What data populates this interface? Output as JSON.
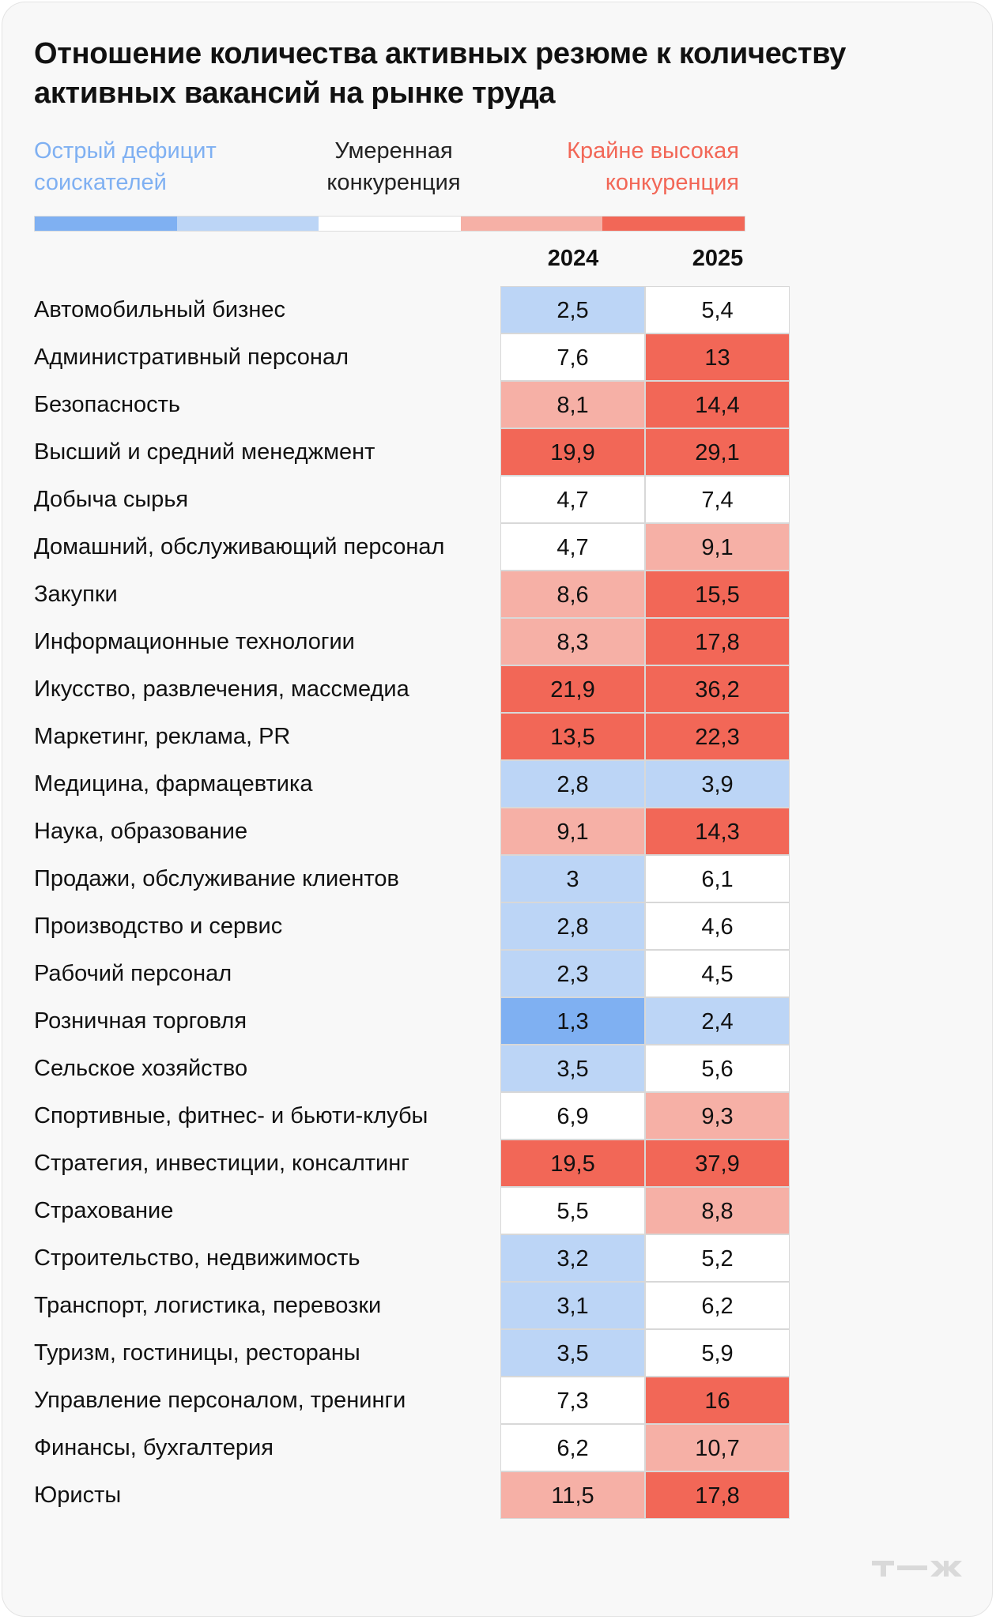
{
  "title": "Отношение количества активных резюме к количеству активных вакансий на рынке труда",
  "legend": {
    "left": "Острый дефицит соискателей",
    "middle": "Умеренная конкуренция",
    "right": "Крайне высокая конкуренция",
    "colors": [
      "#7fb0f2",
      "#bcd5f6",
      "#ffffff",
      "#f6b0a6",
      "#f26757"
    ]
  },
  "logo_text": "Т—Ж",
  "chart_data": {
    "type": "heatmap",
    "title": "Отношение количества активных резюме к количеству активных вакансий на рынке труда",
    "columns": [
      "2024",
      "2025"
    ],
    "rows": [
      {
        "label": "Автомобильный бизнес",
        "values": [
          "2,5",
          "5,4"
        ]
      },
      {
        "label": "Административный персонал",
        "values": [
          "7,6",
          "13"
        ]
      },
      {
        "label": "Безопасность",
        "values": [
          "8,1",
          "14,4"
        ]
      },
      {
        "label": "Высший и средний менеджмент",
        "values": [
          "19,9",
          "29,1"
        ]
      },
      {
        "label": "Добыча сырья",
        "values": [
          "4,7",
          "7,4"
        ]
      },
      {
        "label": "Домашний, обслуживающий персонал",
        "values": [
          "4,7",
          "9,1"
        ]
      },
      {
        "label": "Закупки",
        "values": [
          "8,6",
          "15,5"
        ]
      },
      {
        "label": "Информационные технологии",
        "values": [
          "8,3",
          "17,8"
        ]
      },
      {
        "label": "Икусство, развлечения, массмедиа",
        "values": [
          "21,9",
          "36,2"
        ]
      },
      {
        "label": "Маркетинг, реклама, PR",
        "values": [
          "13,5",
          "22,3"
        ]
      },
      {
        "label": "Медицина, фармацевтика",
        "values": [
          "2,8",
          "3,9"
        ]
      },
      {
        "label": "Наука, образование",
        "values": [
          "9,1",
          "14,3"
        ]
      },
      {
        "label": "Продажи, обслуживание клиентов",
        "values": [
          "3",
          "6,1"
        ]
      },
      {
        "label": "Производство и сервис",
        "values": [
          "2,8",
          "4,6"
        ]
      },
      {
        "label": "Рабочий персонал",
        "values": [
          "2,3",
          "4,5"
        ]
      },
      {
        "label": "Розничная торговля",
        "values": [
          "1,3",
          "2,4"
        ]
      },
      {
        "label": "Сельское хозяйство",
        "values": [
          "3,5",
          "5,6"
        ]
      },
      {
        "label": "Спортивные, фитнес- и бьюти-клубы",
        "values": [
          "6,9",
          "9,3"
        ]
      },
      {
        "label": "Стратегия, инвестиции, консалтинг",
        "values": [
          "19,5",
          "37,9"
        ]
      },
      {
        "label": "Страхование",
        "values": [
          "5,5",
          "8,8"
        ]
      },
      {
        "label": "Строительство, недвижимость",
        "values": [
          "3,2",
          "5,2"
        ]
      },
      {
        "label": "Транспорт, логистика, перевозки",
        "values": [
          "3,1",
          "6,2"
        ]
      },
      {
        "label": "Туризм, гостиницы, рестораны",
        "values": [
          "3,5",
          "5,9"
        ]
      },
      {
        "label": "Управление персоналом, тренинги",
        "values": [
          "7,3",
          "16"
        ]
      },
      {
        "label": "Финансы, бухгалтерия",
        "values": [
          "6,2",
          "10,7"
        ]
      },
      {
        "label": "Юристы",
        "values": [
          "11,5",
          "17,8"
        ]
      }
    ]
  }
}
